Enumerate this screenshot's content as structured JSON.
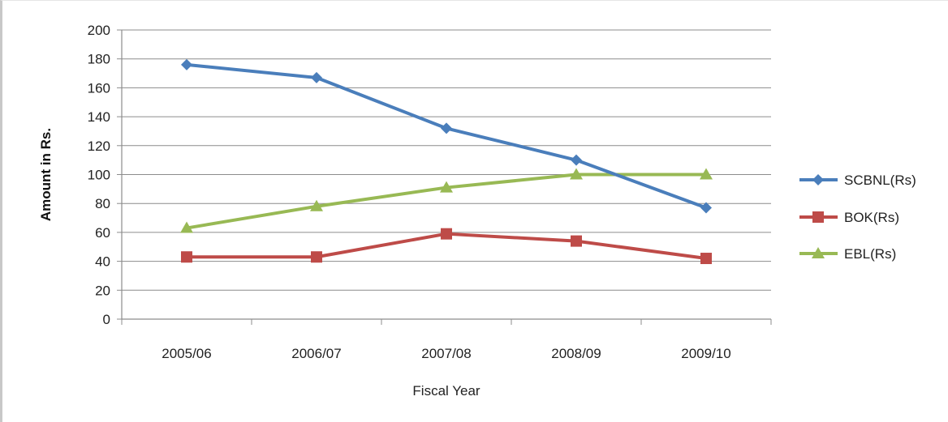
{
  "chart_data": {
    "type": "line",
    "categories": [
      "2005/06",
      "2006/07",
      "2007/08",
      "2008/09",
      "2009/10"
    ],
    "series": [
      {
        "name": "SCBNL(Rs)",
        "values": [
          176,
          167,
          132,
          110,
          77
        ],
        "color": "#4a7ebb",
        "marker": "diamond"
      },
      {
        "name": "BOK(Rs)",
        "values": [
          43,
          43,
          59,
          54,
          42
        ],
        "color": "#be4b48",
        "marker": "square"
      },
      {
        "name": "EBL(Rs)",
        "values": [
          63,
          78,
          91,
          100,
          100
        ],
        "color": "#98b954",
        "marker": "triangle"
      }
    ],
    "xlabel": "Fiscal Year",
    "ylabel": "Amount in Rs.",
    "ylim": [
      0,
      200
    ],
    "ytick_step": 20,
    "y_ticks": [
      "0",
      "20",
      "40",
      "60",
      "80",
      "100",
      "120",
      "140",
      "160",
      "180",
      "200"
    ],
    "grid": true,
    "legend_position": "right"
  }
}
